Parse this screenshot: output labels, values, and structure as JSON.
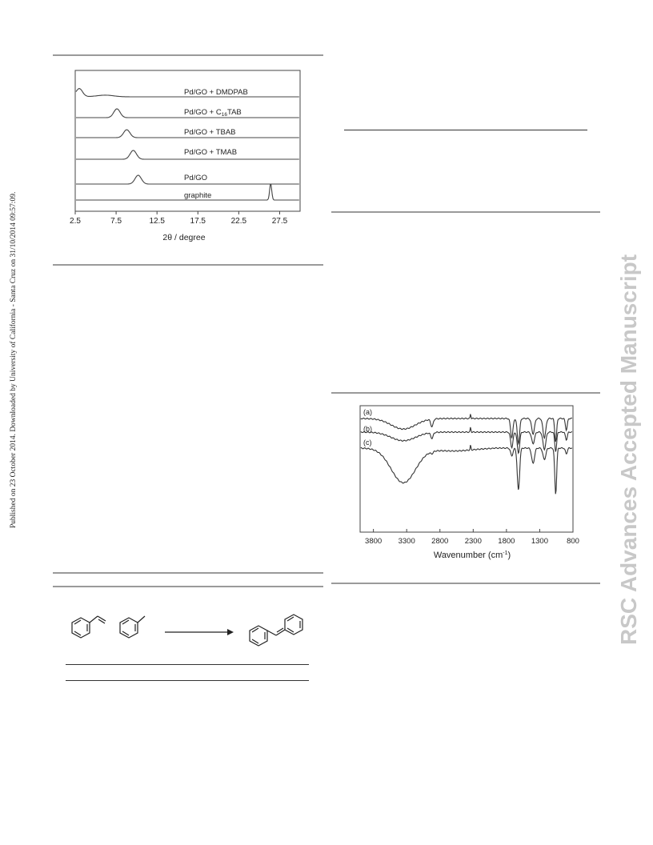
{
  "side_note": "Published on 23 October 2014. Downloaded by University of California - Santa Cruz on 31/10/2014 09:57:09.",
  "watermark": "RSC Advances Accepted Manuscript",
  "chart_data": [
    {
      "type": "line",
      "xlabel": "2θ / degree",
      "ylabel": "",
      "xlim": [
        2.5,
        30
      ],
      "x_ticks": [
        "2.5",
        "7.5",
        "12.5",
        "17.5",
        "22.5",
        "27.5"
      ],
      "grid": false,
      "series": [
        {
          "name": "Pd/GO + DMDPAB",
          "peaks": [
            {
              "x": 3.0,
              "height": 0.9
            },
            {
              "x": 6.2,
              "height": 0.18
            }
          ]
        },
        {
          "name": "Pd/GO + C16TAB",
          "peaks": [
            {
              "x": 7.6,
              "height": 1.0
            }
          ]
        },
        {
          "name": "Pd/GO + TBAB",
          "peaks": [
            {
              "x": 8.8,
              "height": 0.9
            }
          ]
        },
        {
          "name": "Pd/GO + TMAB",
          "peaks": [
            {
              "x": 9.6,
              "height": 1.0
            }
          ]
        },
        {
          "name": "Pd/GO",
          "peaks": [
            {
              "x": 10.2,
              "height": 1.0
            }
          ]
        },
        {
          "name": "graphite",
          "peaks": [
            {
              "x": 26.4,
              "height": 1.9
            }
          ]
        }
      ],
      "labels": {
        "dmdpab": "Pd/GO + DMDPAB",
        "c16_main": "Pd/GO + C",
        "c16_sub": "16",
        "c16_tail": "TAB",
        "tbab": "Pd/GO + TBAB",
        "tmab": "Pd/GO + TMAB",
        "pdgo": "Pd/GO",
        "graphite": "graphite"
      }
    },
    {
      "type": "line",
      "xlabel_main": "Wavenumber (cm",
      "xlabel_sup": "-1",
      "xlabel_tail": ")",
      "ylabel": "",
      "xlim": [
        4000,
        800
      ],
      "x_ticks": [
        "3800",
        "3300",
        "2800",
        "2300",
        "1800",
        "1300",
        "800"
      ],
      "grid": false,
      "series": [
        {
          "name": "(a)"
        },
        {
          "name": "(b)"
        },
        {
          "name": "(c)"
        }
      ]
    }
  ]
}
